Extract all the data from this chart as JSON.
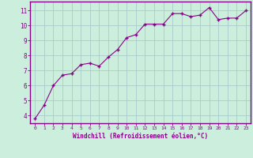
{
  "x": [
    0,
    1,
    2,
    3,
    4,
    5,
    6,
    7,
    8,
    9,
    10,
    11,
    12,
    13,
    14,
    15,
    16,
    17,
    18,
    19,
    20,
    21,
    22,
    23
  ],
  "y": [
    3.8,
    4.7,
    6.0,
    6.7,
    6.8,
    7.4,
    7.5,
    7.3,
    7.9,
    8.4,
    9.2,
    9.4,
    10.1,
    10.1,
    10.1,
    10.8,
    10.8,
    10.6,
    10.7,
    11.2,
    10.4,
    10.5,
    10.5,
    11.0
  ],
  "line_color": "#880088",
  "marker": "+",
  "marker_size": 3,
  "bg_color": "#cceedd",
  "grid_color": "#aacccc",
  "xlabel": "Windchill (Refroidissement éolien,°C)",
  "xlabel_color": "#880088",
  "tick_color": "#880088",
  "ylabel_ticks": [
    4,
    5,
    6,
    7,
    8,
    9,
    10,
    11
  ],
  "ylim": [
    3.5,
    11.6
  ],
  "xlim": [
    -0.5,
    23.5
  ],
  "xticks": [
    0,
    1,
    2,
    3,
    4,
    5,
    6,
    7,
    8,
    9,
    10,
    11,
    12,
    13,
    14,
    15,
    16,
    17,
    18,
    19,
    20,
    21,
    22,
    23
  ]
}
